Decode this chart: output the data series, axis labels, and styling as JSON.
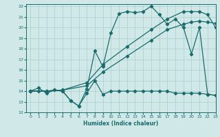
{
  "xlabel": "Humidex (Indice chaleur)",
  "xlim": [
    -0.5,
    23
  ],
  "ylim": [
    12,
    22.2
  ],
  "xticks": [
    0,
    1,
    2,
    3,
    4,
    5,
    6,
    7,
    8,
    9,
    10,
    11,
    12,
    13,
    14,
    15,
    16,
    17,
    18,
    19,
    20,
    21,
    22,
    23
  ],
  "yticks": [
    12,
    13,
    14,
    15,
    16,
    17,
    18,
    19,
    20,
    21,
    22
  ],
  "bg_color": "#d0e8e8",
  "line_color": "#1a6b6b",
  "grid_color": "#aacccc",
  "line1_x": [
    0,
    1,
    2,
    3,
    4,
    5,
    6,
    7,
    8,
    9,
    10,
    11,
    12,
    13,
    14,
    15,
    16,
    17,
    18,
    19,
    20,
    21,
    22,
    23
  ],
  "line1_y": [
    14.0,
    14.3,
    13.8,
    14.1,
    14.0,
    13.1,
    12.6,
    13.8,
    15.0,
    13.7,
    14.0,
    14.0,
    14.0,
    14.0,
    14.0,
    14.0,
    14.0,
    14.0,
    13.8,
    13.8,
    13.8,
    13.8,
    13.7,
    13.6
  ],
  "line2_x": [
    0,
    2,
    4,
    7,
    9,
    12,
    15,
    17,
    19,
    20,
    21,
    22,
    23
  ],
  "line2_y": [
    14.0,
    14.0,
    14.1,
    14.5,
    15.8,
    17.3,
    18.8,
    19.8,
    20.3,
    20.5,
    20.6,
    20.5,
    20.4
  ],
  "line3_x": [
    0,
    2,
    4,
    7,
    9,
    12,
    15,
    17,
    19,
    20,
    21,
    22,
    23
  ],
  "line3_y": [
    14.0,
    14.0,
    14.1,
    14.8,
    16.5,
    18.2,
    19.8,
    20.8,
    21.5,
    21.5,
    21.5,
    21.2,
    20.0
  ],
  "line4_x": [
    0,
    1,
    2,
    3,
    4,
    5,
    6,
    7,
    8,
    9,
    10,
    11,
    12,
    13,
    14,
    15,
    16,
    17,
    18,
    19,
    20,
    21,
    22,
    23
  ],
  "line4_y": [
    14.0,
    14.0,
    14.0,
    14.1,
    14.0,
    13.1,
    12.6,
    14.2,
    17.8,
    16.3,
    19.5,
    21.3,
    21.5,
    21.4,
    21.5,
    22.0,
    21.2,
    20.3,
    20.8,
    20.0,
    17.5,
    20.0,
    13.7,
    13.6
  ]
}
